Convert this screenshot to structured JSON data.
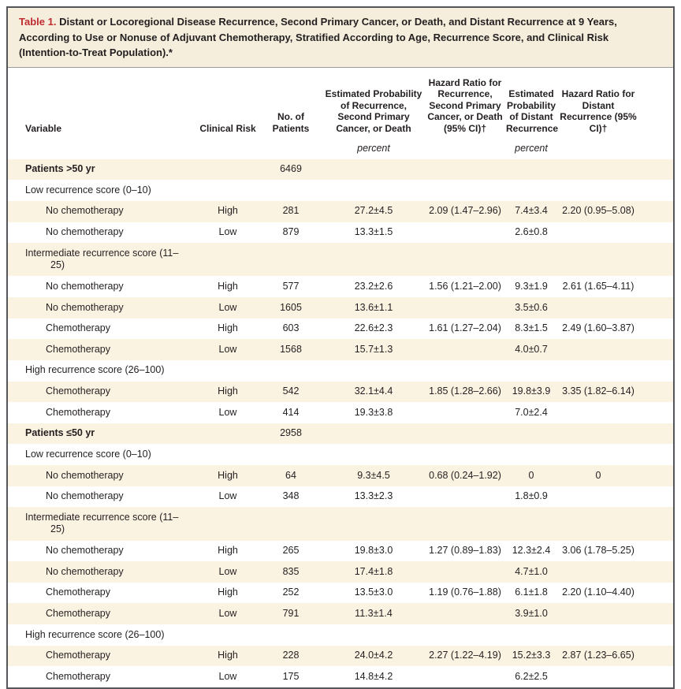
{
  "colors": {
    "title_red": "#C02B30",
    "title_bg": "#F5EEDC",
    "row_beige": "#FBF3E2",
    "frame_border": "#55565A",
    "text": "#231F20"
  },
  "table": {
    "title_label": "Table 1.",
    "title_text": "Distant or Locoregional Disease Recurrence, Second Primary Cancer, or Death, and Distant Recurrence at 9 Years, According to Use or Nonuse of Adjuvant Chemotherapy, Stratified According to Age, Recurrence Score, and Clinical Risk (Intention-to-Treat Population).*",
    "columns": [
      {
        "key": "variable",
        "label": "Variable"
      },
      {
        "key": "clinical_risk",
        "label": "Clinical Risk"
      },
      {
        "key": "patients",
        "label": "No. of Patients"
      },
      {
        "key": "est_prob",
        "label": "Estimated Probability of Recurrence, Second Primary Cancer, or Death"
      },
      {
        "key": "hazard_ratio",
        "label": "Hazard Ratio for Recurrence, Second Primary Cancer, or Death (95% CI)†"
      },
      {
        "key": "est_prob_distant",
        "label": "Estimated Probability of Distant Recurrence"
      },
      {
        "key": "hazard_ratio_distant",
        "label": "Hazard Ratio for Distant Recurrence (95% CI)†"
      }
    ],
    "unit_label": "percent",
    "unit_columns": [
      "est_prob",
      "est_prob_distant"
    ],
    "rows": [
      {
        "type": "group",
        "variable": "Patients >50 yr",
        "patients": "6469"
      },
      {
        "type": "section",
        "variable": "Low recurrence score (0–10)"
      },
      {
        "type": "data",
        "variable": "No chemotherapy",
        "clinical_risk": "High",
        "patients": "281",
        "est_prob": "27.2±4.5",
        "hazard_ratio": "2.09 (1.47–2.96)",
        "est_prob_distant": "7.4±3.4",
        "hazard_ratio_distant": "2.20 (0.95–5.08)"
      },
      {
        "type": "data",
        "variable": "No chemotherapy",
        "clinical_risk": "Low",
        "patients": "879",
        "est_prob": "13.3±1.5",
        "hazard_ratio": "",
        "est_prob_distant": "2.6±0.8",
        "hazard_ratio_distant": ""
      },
      {
        "type": "section",
        "variable": "Intermediate recurrence score (11–25)"
      },
      {
        "type": "data",
        "variable": "No chemotherapy",
        "clinical_risk": "High",
        "patients": "577",
        "est_prob": "23.2±2.6",
        "hazard_ratio": "1.56 (1.21–2.00)",
        "est_prob_distant": "9.3±1.9",
        "hazard_ratio_distant": "2.61 (1.65–4.11)"
      },
      {
        "type": "data",
        "variable": "No chemotherapy",
        "clinical_risk": "Low",
        "patients": "1605",
        "est_prob": "13.6±1.1",
        "hazard_ratio": "",
        "est_prob_distant": "3.5±0.6",
        "hazard_ratio_distant": ""
      },
      {
        "type": "data",
        "variable": "Chemotherapy",
        "clinical_risk": "High",
        "patients": "603",
        "est_prob": "22.6±2.3",
        "hazard_ratio": "1.61 (1.27–2.04)",
        "est_prob_distant": "8.3±1.5",
        "hazard_ratio_distant": "2.49 (1.60–3.87)"
      },
      {
        "type": "data",
        "variable": "Chemotherapy",
        "clinical_risk": "Low",
        "patients": "1568",
        "est_prob": "15.7±1.3",
        "hazard_ratio": "",
        "est_prob_distant": "4.0±0.7",
        "hazard_ratio_distant": ""
      },
      {
        "type": "section",
        "variable": "High recurrence score (26–100)"
      },
      {
        "type": "data",
        "variable": "Chemotherapy",
        "clinical_risk": "High",
        "patients": "542",
        "est_prob": "32.1±4.4",
        "hazard_ratio": "1.85 (1.28–2.66)",
        "est_prob_distant": "19.8±3.9",
        "hazard_ratio_distant": "3.35 (1.82–6.14)"
      },
      {
        "type": "data",
        "variable": "Chemotherapy",
        "clinical_risk": "Low",
        "patients": "414",
        "est_prob": "19.3±3.8",
        "hazard_ratio": "",
        "est_prob_distant": "7.0±2.4",
        "hazard_ratio_distant": ""
      },
      {
        "type": "group",
        "variable": "Patients ≤50 yr",
        "patients": "2958"
      },
      {
        "type": "section",
        "variable": "Low recurrence score (0–10)"
      },
      {
        "type": "data",
        "variable": "No chemotherapy",
        "clinical_risk": "High",
        "patients": "64",
        "est_prob": "9.3±4.5",
        "hazard_ratio": "0.68 (0.24–1.92)",
        "est_prob_distant": "0",
        "hazard_ratio_distant": "0"
      },
      {
        "type": "data",
        "variable": "No chemotherapy",
        "clinical_risk": "Low",
        "patients": "348",
        "est_prob": "13.3±2.3",
        "hazard_ratio": "",
        "est_prob_distant": "1.8±0.9",
        "hazard_ratio_distant": ""
      },
      {
        "type": "section",
        "variable": "Intermediate recurrence score (11–25)"
      },
      {
        "type": "data",
        "variable": "No chemotherapy",
        "clinical_risk": "High",
        "patients": "265",
        "est_prob": "19.8±3.0",
        "hazard_ratio": "1.27 (0.89–1.83)",
        "est_prob_distant": "12.3±2.4",
        "hazard_ratio_distant": "3.06 (1.78–5.25)"
      },
      {
        "type": "data",
        "variable": "No chemotherapy",
        "clinical_risk": "Low",
        "patients": "835",
        "est_prob": "17.4±1.8",
        "hazard_ratio": "",
        "est_prob_distant": "4.7±1.0",
        "hazard_ratio_distant": ""
      },
      {
        "type": "data",
        "variable": "Chemotherapy",
        "clinical_risk": "High",
        "patients": "252",
        "est_prob": "13.5±3.0",
        "hazard_ratio": "1.19 (0.76–1.88)",
        "est_prob_distant": "6.1±1.8",
        "hazard_ratio_distant": "2.20 (1.10–4.40)"
      },
      {
        "type": "data",
        "variable": "Chemotherapy",
        "clinical_risk": "Low",
        "patients": "791",
        "est_prob": "11.3±1.4",
        "hazard_ratio": "",
        "est_prob_distant": "3.9±1.0",
        "hazard_ratio_distant": ""
      },
      {
        "type": "section",
        "variable": "High recurrence score (26–100)"
      },
      {
        "type": "data",
        "variable": "Chemotherapy",
        "clinical_risk": "High",
        "patients": "228",
        "est_prob": "24.0±4.2",
        "hazard_ratio": "2.27 (1.22–4.19)",
        "est_prob_distant": "15.2±3.3",
        "hazard_ratio_distant": "2.87 (1.23–6.65)"
      },
      {
        "type": "data",
        "variable": "Chemotherapy",
        "clinical_risk": "Low",
        "patients": "175",
        "est_prob": "14.8±4.2",
        "hazard_ratio": "",
        "est_prob_distant": "6.2±2.5",
        "hazard_ratio_distant": ""
      }
    ]
  }
}
